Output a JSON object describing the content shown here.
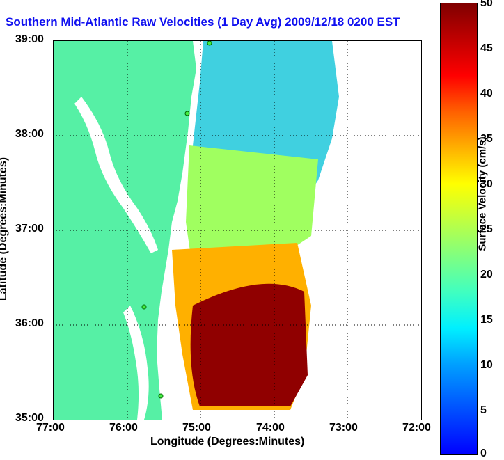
{
  "title": "Southern Mid-Atlantic Raw Velocities (1 Day Avg) 2009/12/18 0200 EST",
  "x_axis": {
    "label": "Longitude (Degrees:Minutes)",
    "ticks": [
      "77:00",
      "76:00",
      "75:00",
      "74:00",
      "73:00",
      "72:00"
    ]
  },
  "y_axis": {
    "label": "Latitude (Degrees:Minutes)",
    "ticks": [
      "39:00",
      "38:00",
      "37:00",
      "36:00",
      "35:00"
    ]
  },
  "colorbar": {
    "label": "Surface Velocity (cm/s)",
    "ticks": [
      "50",
      "45",
      "40",
      "35",
      "30",
      "25",
      "20",
      "15",
      "10",
      "5",
      "0"
    ]
  },
  "colors": {
    "land": "#56f0a5",
    "title": "#1010f0"
  }
}
